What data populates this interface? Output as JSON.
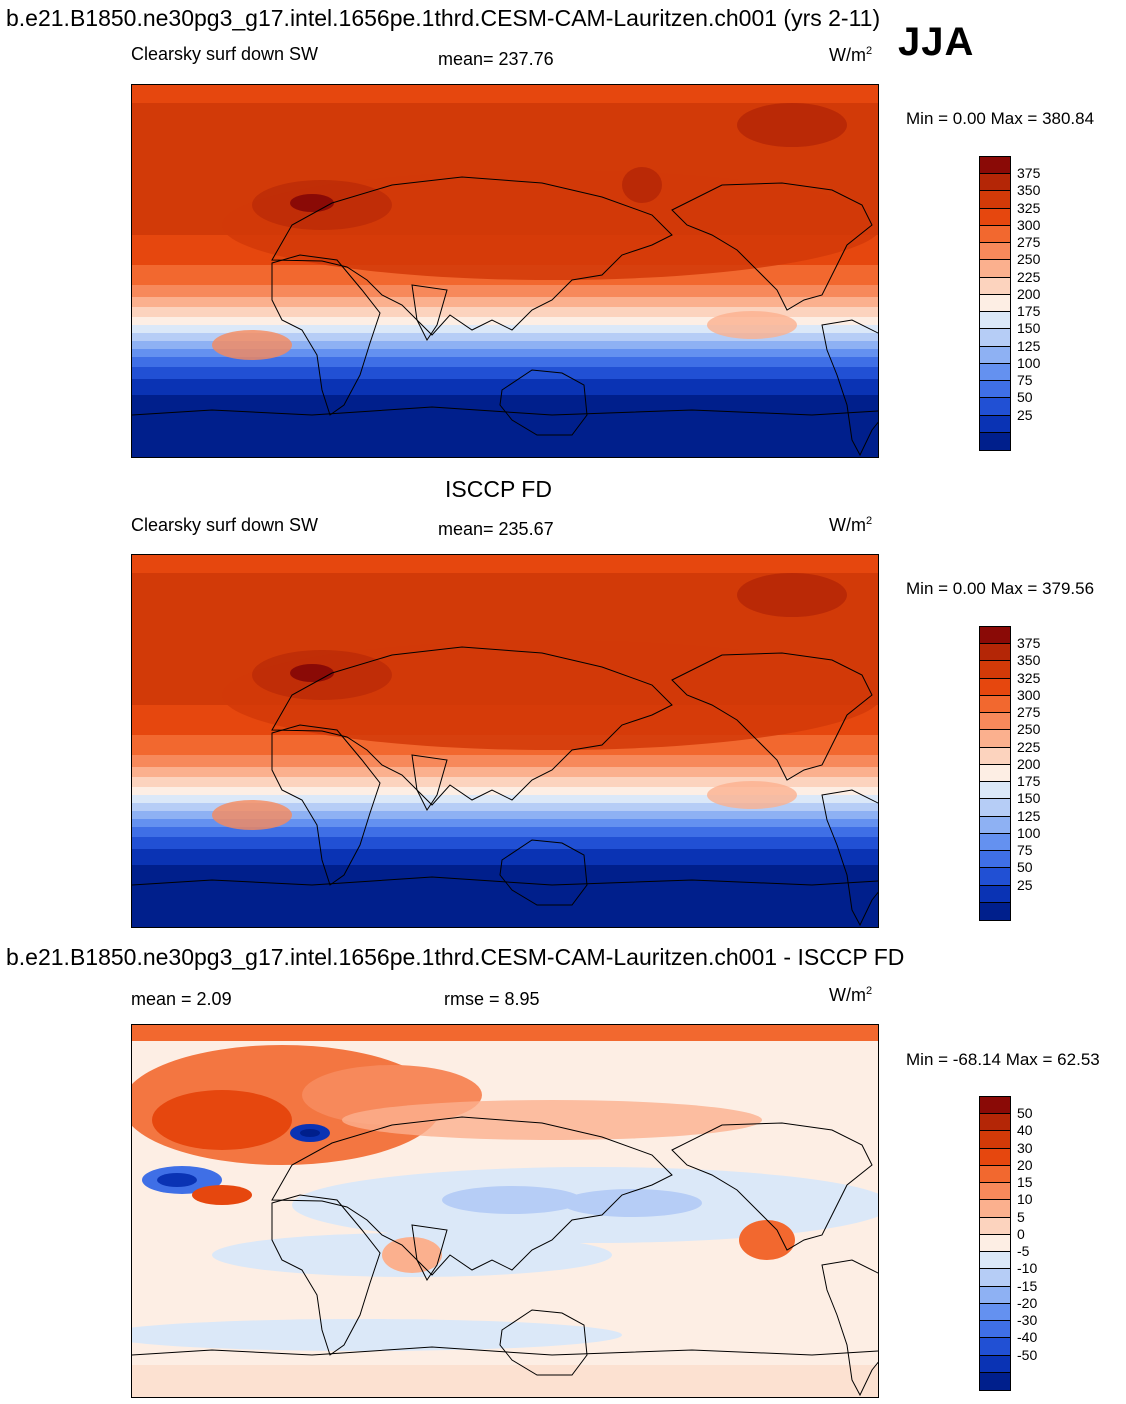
{
  "header": {
    "title": "b.e21.B1850.ne30pg3_g17.intel.1656pe.1thrd.CESM-CAM-Lauritzen.ch001 (yrs 2-11)",
    "season": "JJA"
  },
  "panels": [
    {
      "id": "model",
      "variable": "Clearsky surf down SW",
      "mean_text": "mean= 237.76",
      "units_base": "W/m",
      "units_exp": "2",
      "minmax": "Min =    0.00 Max = 380.84"
    },
    {
      "id": "obs",
      "title": "ISCCP FD",
      "variable": "Clearsky surf down SW",
      "mean_text": "mean= 235.67",
      "units_base": "W/m",
      "units_exp": "2",
      "minmax": "Min =    0.00 Max = 379.56"
    },
    {
      "id": "diff",
      "title": "b.e21.B1850.ne30pg3_g17.intel.1656pe.1thrd.CESM-CAM-Lauritzen.ch001 - ISCCP FD",
      "mean_text": "mean =   2.09",
      "rmse_text": "rmse =   8.95",
      "units_base": "W/m",
      "units_exp": "2",
      "minmax": "Min = -68.14 Max =  62.53"
    }
  ],
  "colorbars": {
    "absolute": {
      "labels": [
        "375",
        "350",
        "325",
        "300",
        "275",
        "250",
        "225",
        "200",
        "175",
        "150",
        "125",
        "100",
        "75",
        "50",
        "25"
      ],
      "colors": [
        "#8a0a06",
        "#b42606",
        "#d23a08",
        "#e6470e",
        "#f2682f",
        "#f7895b",
        "#fbb08e",
        "#fcd3be",
        "#fdeee4",
        "#dbe8f8",
        "#b6cdf6",
        "#8eb1f3",
        "#6491f0",
        "#3f6fe6",
        "#2150d4",
        "#0a33b4",
        "#001f8c"
      ]
    },
    "difference": {
      "labels": [
        "50",
        "40",
        "30",
        "20",
        "15",
        "10",
        "5",
        "0",
        "-5",
        "-10",
        "-15",
        "-20",
        "-30",
        "-40",
        "-50"
      ],
      "colors": [
        "#8a0a06",
        "#b42606",
        "#d23a08",
        "#e6470e",
        "#f2682f",
        "#f7895b",
        "#fbb08e",
        "#fcd3be",
        "#fdeee4",
        "#dbe8f8",
        "#b6cdf6",
        "#8eb1f3",
        "#6491f0",
        "#3f6fe6",
        "#2150d4",
        "#0a33b4",
        "#001f8c"
      ]
    }
  }
}
